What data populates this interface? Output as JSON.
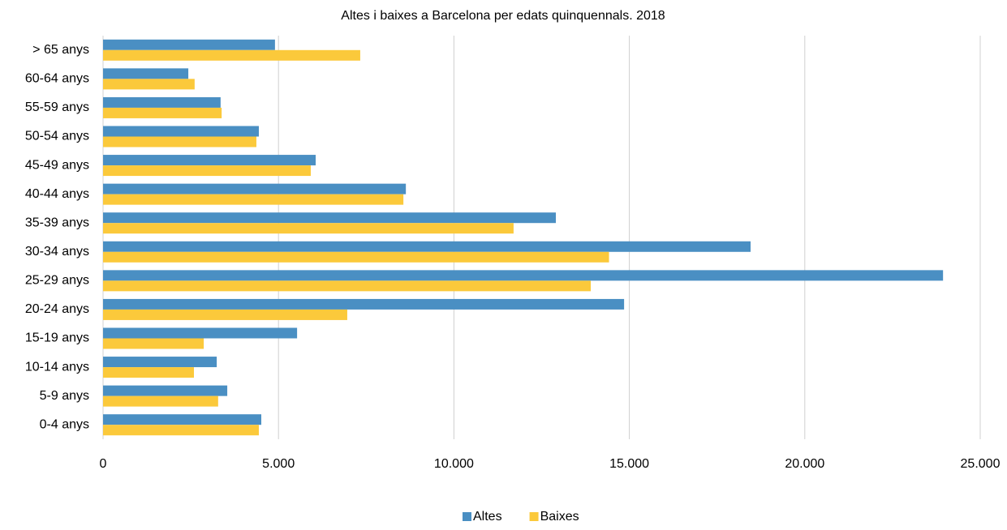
{
  "chart_data": {
    "type": "hbar",
    "title": "Altes i baixes a Barcelona per edats quinquennals. 2018",
    "categories": [
      "0-4 anys",
      "5-9 anys",
      "10-14 anys",
      "15-19 anys",
      "20-24 anys",
      "25-29 anys",
      "30-34 anys",
      "35-39 anys",
      "40-44 anys",
      "45-49 anys",
      "50-54 anys",
      "55-59 anys",
      "60-64 anys",
      "> 65 anys"
    ],
    "series": [
      {
        "name": "Altes",
        "color": "#4a8fc3",
        "values": [
          4510,
          3540,
          3240,
          5530,
          14850,
          23940,
          18455,
          12905,
          8630,
          6060,
          4440,
          3350,
          2430,
          4900
        ]
      },
      {
        "name": "Baixes",
        "color": "#fbc93b",
        "values": [
          4440,
          3280,
          2590,
          2870,
          6960,
          13900,
          14420,
          11700,
          8560,
          5920,
          4370,
          3380,
          2610,
          7330
        ]
      }
    ],
    "xlim": [
      0,
      25000
    ],
    "xticks": [
      0,
      {
        "value": 5000,
        "label": "5.000"
      },
      {
        "value": 10000,
        "label": "10.000"
      },
      {
        "value": 15000,
        "label": "15.000"
      },
      {
        "value": 20000,
        "label": "20.000"
      },
      {
        "value": 25000,
        "label": "25.000"
      }
    ],
    "grid": true,
    "legend": "bottom"
  }
}
